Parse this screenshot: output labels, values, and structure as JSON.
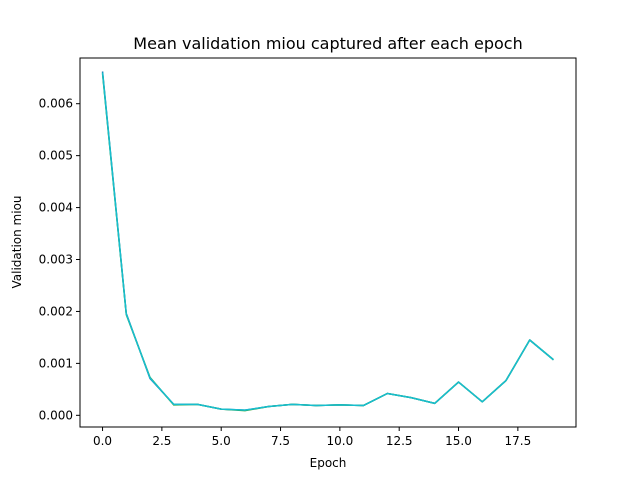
{
  "chart_data": {
    "type": "line",
    "title": "Mean validation miou captured after each epoch",
    "xlabel": "Epoch",
    "ylabel": "Validation miou",
    "xlim": [
      -0.95,
      19.95
    ],
    "ylim": [
      -0.000225,
      0.00688
    ],
    "xticks": [
      0.0,
      2.5,
      5.0,
      7.5,
      10.0,
      12.5,
      15.0,
      17.5
    ],
    "xtick_labels": [
      "0.0",
      "2.5",
      "5.0",
      "7.5",
      "10.0",
      "12.5",
      "15.0",
      "17.5"
    ],
    "yticks": [
      0.0,
      0.001,
      0.002,
      0.003,
      0.004,
      0.005,
      0.006
    ],
    "ytick_labels": [
      "0.000",
      "0.001",
      "0.002",
      "0.003",
      "0.004",
      "0.005",
      "0.006"
    ],
    "grid": false,
    "series": [
      {
        "color": "#1f77b4",
        "x": [
          0,
          1,
          2,
          3,
          4,
          5,
          6,
          7,
          8,
          9,
          10,
          11,
          12,
          13,
          14,
          15,
          16,
          17,
          18,
          19
        ],
        "y": [
          0.00662,
          0.00196,
          0.00071,
          0.00021,
          0.00021,
          0.00012,
          0.0001,
          0.00017,
          0.00021,
          0.00019,
          0.0002,
          0.00019,
          0.00042,
          0.00034,
          0.00023,
          0.00064,
          0.00026,
          0.00067,
          0.00145,
          0.00107
        ]
      },
      {
        "color": "#2ca02c",
        "x": [
          0,
          1,
          2,
          3,
          4,
          5,
          6,
          7,
          8,
          9,
          10,
          11,
          12,
          13,
          14,
          15,
          16,
          17,
          18,
          19
        ],
        "y": [
          0.00658,
          0.00194,
          0.00073,
          0.0002,
          0.00021,
          0.00012,
          9e-05,
          0.00017,
          0.00021,
          0.00019,
          0.0002,
          0.00019,
          0.00042,
          0.00034,
          0.00023,
          0.00064,
          0.00026,
          0.00067,
          0.00145,
          0.00107
        ]
      },
      {
        "color": "#17becf",
        "x": [
          0,
          1,
          2,
          3,
          4,
          5,
          6,
          7,
          8,
          9,
          10,
          11,
          12,
          13,
          14,
          15,
          16,
          17,
          18,
          19
        ],
        "y": [
          0.0066,
          0.00195,
          0.00072,
          0.00021,
          0.00021,
          0.00012,
          0.0001,
          0.00017,
          0.00021,
          0.00019,
          0.0002,
          0.00019,
          0.00042,
          0.00034,
          0.00023,
          0.00064,
          0.00026,
          0.00067,
          0.00145,
          0.00107
        ]
      }
    ]
  }
}
